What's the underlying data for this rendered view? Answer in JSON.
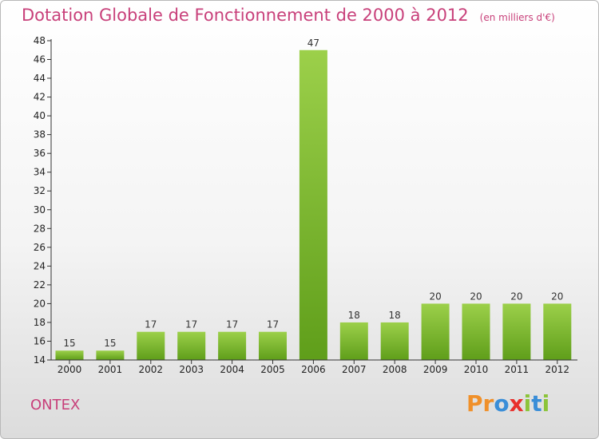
{
  "header": {
    "title": "Dotation Globale de Fonctionnement de 2000 à 2012",
    "unit": "(en milliers d'€)"
  },
  "footer": {
    "commune": "ONTEX",
    "brand_letters": [
      "P",
      "r",
      "o",
      "x",
      "i",
      "t",
      "i"
    ],
    "brand_colors": [
      "#f0902a",
      "#f0902a",
      "#3a8ed8",
      "#e8302c",
      "#8cc43a",
      "#3a8ed8",
      "#8cc43a"
    ]
  },
  "colors": {
    "title": "#c8407a",
    "bar_light": "#9cd04a",
    "bar_dark": "#5f9e1a"
  },
  "chart_data": {
    "type": "bar",
    "title": "Dotation Globale de Fonctionnement de 2000 à 2012",
    "subtitle": "(en milliers d'€)",
    "categories": [
      "2000",
      "2001",
      "2002",
      "2003",
      "2004",
      "2005",
      "2006",
      "2007",
      "2008",
      "2009",
      "2010",
      "2011",
      "2012"
    ],
    "values": [
      15,
      15,
      17,
      17,
      17,
      17,
      47,
      18,
      18,
      20,
      20,
      20,
      20
    ],
    "ylim": [
      14,
      48
    ],
    "yticks": [
      14,
      16,
      18,
      20,
      22,
      24,
      26,
      28,
      30,
      32,
      34,
      36,
      38,
      40,
      42,
      44,
      46,
      48
    ],
    "xlabel": "",
    "ylabel": "",
    "grid": false,
    "legend": "none"
  }
}
